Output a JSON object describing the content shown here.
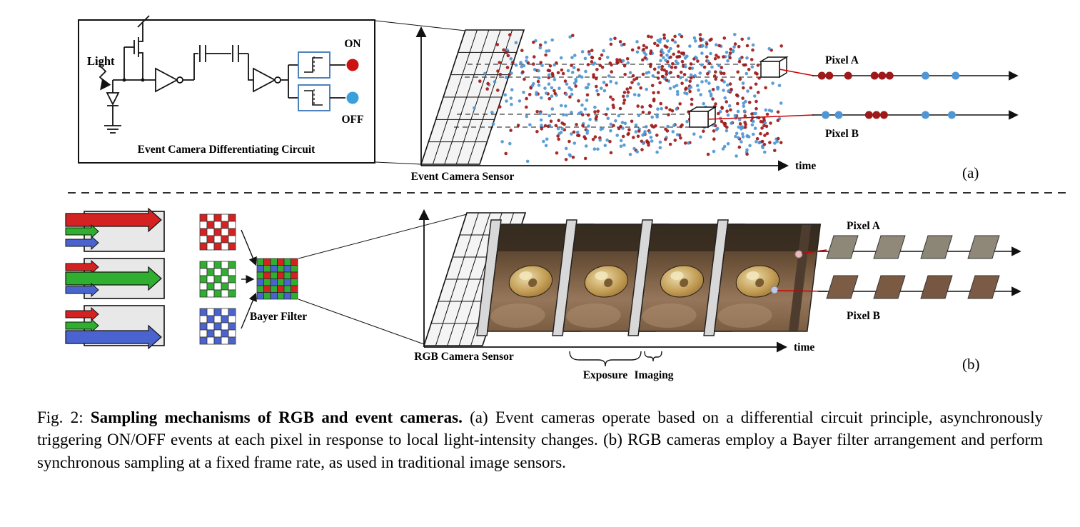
{
  "panel_a": {
    "tag": "(a)",
    "circuit": {
      "title": "Event Camera Differentiating Circuit",
      "light_label": "Light",
      "on_label": "ON",
      "off_label": "OFF"
    },
    "sensor_label": "Event Camera Sensor",
    "time_label": "time",
    "pixel_a": {
      "label": "Pixel A",
      "events": [
        {
          "t": 0.02,
          "polarity": "on"
        },
        {
          "t": 0.06,
          "polarity": "on"
        },
        {
          "t": 0.16,
          "polarity": "on"
        },
        {
          "t": 0.3,
          "polarity": "on"
        },
        {
          "t": 0.34,
          "polarity": "on"
        },
        {
          "t": 0.38,
          "polarity": "on"
        },
        {
          "t": 0.57,
          "polarity": "off"
        },
        {
          "t": 0.73,
          "polarity": "off"
        }
      ]
    },
    "pixel_b": {
      "label": "Pixel B",
      "events": [
        {
          "t": 0.04,
          "polarity": "off"
        },
        {
          "t": 0.11,
          "polarity": "off"
        },
        {
          "t": 0.27,
          "polarity": "on"
        },
        {
          "t": 0.31,
          "polarity": "on"
        },
        {
          "t": 0.35,
          "polarity": "on"
        },
        {
          "t": 0.57,
          "polarity": "off"
        },
        {
          "t": 0.71,
          "polarity": "off"
        }
      ]
    },
    "colors": {
      "on": "#9e1a1a",
      "off": "#4e97d4",
      "on_indicator": "#cc1111",
      "off_indicator": "#3aa0dc"
    }
  },
  "panel_b": {
    "tag": "(b)",
    "bayer_label": "Bayer Filter",
    "sensor_label": "RGB Camera Sensor",
    "time_label": "time",
    "exposure_label": "Exposure",
    "imaging_label": "Imaging",
    "pixel_a": {
      "label": "Pixel A",
      "samples": [
        "#8e8878",
        "#90897a",
        "#8c8676",
        "#8f8879"
      ]
    },
    "pixel_b": {
      "label": "Pixel B",
      "samples": [
        "#7c5c44",
        "#7a5a42",
        "#775741",
        "#7b5b45"
      ]
    },
    "filter_colors": {
      "red": "#d42222",
      "green": "#2fae2f",
      "blue": "#4a63cf"
    }
  },
  "caption": {
    "prefix": "Fig. 2: ",
    "bold": "Sampling mechanisms of RGB and event cameras.",
    "body": " (a) Event cameras operate based on a differential circuit principle, asynchronously triggering ON/OFF events at each pixel in response to local light-intensity changes. (b) RGB cameras employ a Bayer filter arrangement and perform synchronous sampling at a fixed frame rate, as used in traditional image sensors."
  }
}
